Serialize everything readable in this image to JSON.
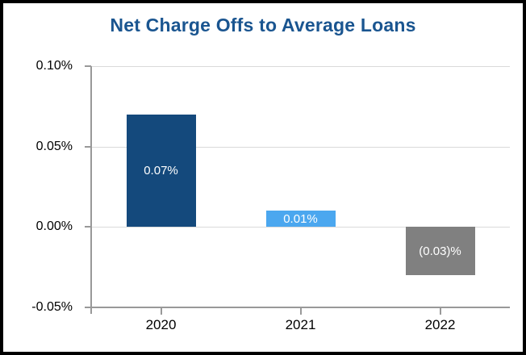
{
  "chart_data": {
    "type": "bar",
    "title": "Net Charge Offs to Average Loans",
    "categories": [
      "2020",
      "2021",
      "2022"
    ],
    "values": [
      0.07,
      0.01,
      -0.03
    ],
    "data_labels": [
      "0.07%",
      "0.01%",
      "(0.03)%"
    ],
    "bar_colors": [
      "#14497C",
      "#4BA7EF",
      "#808080"
    ],
    "xlabel": "",
    "ylabel": "",
    "ylim": [
      -0.05,
      0.1
    ],
    "y_ticks": [
      {
        "label": "0.10%",
        "value": 0.1
      },
      {
        "label": "0.05%",
        "value": 0.05
      },
      {
        "label": "0.00%",
        "value": 0.0
      },
      {
        "label": "-0.05%",
        "value": -0.05
      }
    ],
    "grid": true,
    "legend": "none"
  },
  "colors": {
    "title": "#1A5590",
    "gridline": "#DADADA",
    "axis": "#999999",
    "tick_label": "#000000",
    "data_label": "#FFFFFF",
    "background": "#FFFFFF",
    "border": "#000000"
  }
}
